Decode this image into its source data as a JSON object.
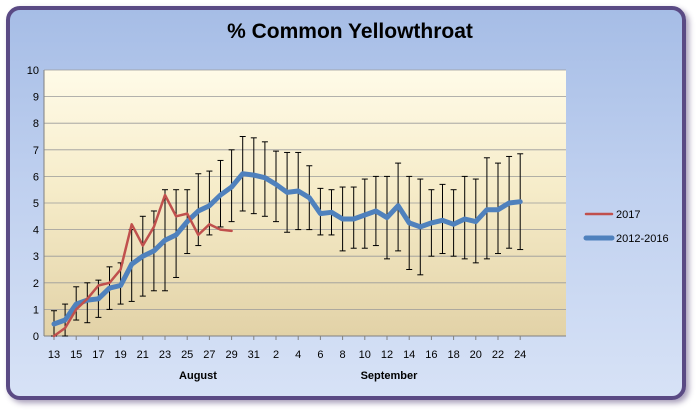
{
  "chart_data": {
    "type": "line",
    "title": "% Common Yellowthroat",
    "ylim": [
      0,
      10
    ],
    "yticks": [
      "0",
      "1",
      "2",
      "3",
      "4",
      "5",
      "6",
      "7",
      "8",
      "9",
      "10"
    ],
    "x_ticks": [
      "13",
      "15",
      "17",
      "19",
      "21",
      "23",
      "25",
      "27",
      "29",
      "31",
      "2",
      "4",
      "6",
      "8",
      "10",
      "12",
      "14",
      "16",
      "18",
      "20",
      "22",
      "24"
    ],
    "months": [
      "August",
      "September"
    ],
    "grid": "horizontal",
    "legend_position": "right",
    "series": [
      {
        "name": "2017",
        "color": "#c0504d",
        "values": [
          0.0,
          0.3,
          1.0,
          1.4,
          1.9,
          2.0,
          2.5,
          4.2,
          3.4,
          4.1,
          5.3,
          4.5,
          4.6,
          3.8,
          4.2,
          4.0,
          3.95
        ]
      },
      {
        "name": "2012-2016",
        "color": "#4f81bd",
        "values": [
          0.45,
          0.6,
          1.2,
          1.35,
          1.4,
          1.8,
          1.9,
          2.7,
          3.0,
          3.2,
          3.6,
          3.8,
          4.3,
          4.7,
          4.9,
          5.3,
          5.6,
          6.1,
          6.05,
          5.95,
          5.7,
          5.4,
          5.45,
          5.2,
          4.6,
          4.65,
          4.4,
          4.4,
          4.55,
          4.7,
          4.45,
          4.9,
          4.25,
          4.1,
          4.25,
          4.35,
          4.2,
          4.4,
          4.3,
          4.75,
          4.75,
          5.0,
          5.05
        ],
        "error_low": [
          0.0,
          0.0,
          0.6,
          0.5,
          0.7,
          1.0,
          1.2,
          1.3,
          1.5,
          1.7,
          1.7,
          2.2,
          3.1,
          3.4,
          3.8,
          4.1,
          4.3,
          4.7,
          4.6,
          4.5,
          4.3,
          3.9,
          4.0,
          4.0,
          3.8,
          3.8,
          3.2,
          3.3,
          3.3,
          3.4,
          2.9,
          3.2,
          2.5,
          2.3,
          3.0,
          3.1,
          3.0,
          2.9,
          2.75,
          2.9,
          3.1,
          3.3,
          3.25
        ],
        "error_high": [
          0.95,
          1.2,
          1.85,
          2.0,
          2.1,
          2.6,
          2.75,
          4.0,
          4.5,
          4.7,
          5.5,
          5.5,
          5.5,
          6.1,
          6.2,
          6.6,
          7.0,
          7.5,
          7.45,
          7.3,
          6.95,
          6.9,
          6.9,
          6.4,
          5.55,
          5.5,
          5.6,
          5.6,
          5.9,
          6.0,
          6.0,
          6.5,
          6.0,
          5.9,
          5.5,
          5.7,
          5.5,
          6.0,
          5.9,
          6.7,
          6.5,
          6.75,
          6.85
        ]
      }
    ]
  }
}
